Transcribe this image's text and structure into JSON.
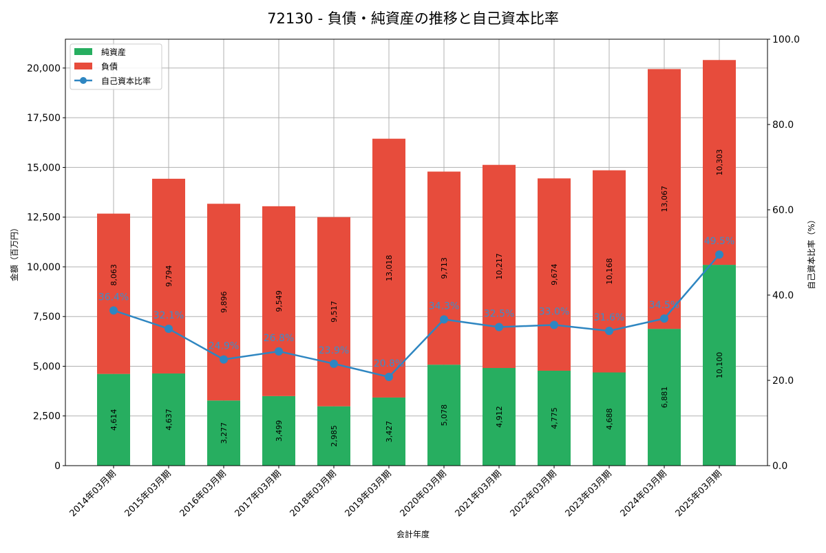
{
  "chart_data": {
    "type": "bar",
    "title": "72130 - 負債・純資産の推移と自己資本比率",
    "xlabel": "会計年度",
    "ylabel": "金額（百万円）",
    "y2label": "自己資本比率（%）",
    "ylim": [
      0,
      21450
    ],
    "y2lim": [
      0,
      100
    ],
    "yticks": [
      0,
      2500,
      5000,
      7500,
      10000,
      12500,
      15000,
      17500,
      20000
    ],
    "ytick_labels": [
      "0",
      "2,500",
      "5,000",
      "7,500",
      "10,000",
      "12,500",
      "15,000",
      "17,500",
      "20,000"
    ],
    "y2ticks": [
      0,
      20,
      40,
      60,
      80,
      100
    ],
    "y2tick_labels": [
      "0.0",
      "20.0",
      "40.0",
      "60.0",
      "80.0",
      "100.0"
    ],
    "grid": true,
    "legend_position": "top-left",
    "categories": [
      "2014年03月期",
      "2015年03月期",
      "2016年03月期",
      "2017年03月期",
      "2018年03月期",
      "2019年03月期",
      "2020年03月期",
      "2021年03月期",
      "2022年03月期",
      "2023年03月期",
      "2024年03月期",
      "2025年03月期"
    ],
    "series": [
      {
        "name": "純資産",
        "type": "bar",
        "color": "#27ae60",
        "values": [
          4614,
          4637,
          3277,
          3499,
          2985,
          3427,
          5078,
          4912,
          4775,
          4688,
          6881,
          10100
        ],
        "labels": [
          "4,614",
          "4,637",
          "3,277",
          "3,499",
          "2,985",
          "3,427",
          "5,078",
          "4,912",
          "4,775",
          "4,688",
          "6,881",
          "10,100"
        ]
      },
      {
        "name": "負債",
        "type": "bar",
        "color": "#e74c3c",
        "values": [
          8063,
          9794,
          9896,
          9549,
          9517,
          13018,
          9713,
          10217,
          9674,
          10168,
          13067,
          10303
        ],
        "labels": [
          "8,063",
          "9,794",
          "9,896",
          "9,549",
          "9,517",
          "13,018",
          "9,713",
          "10,217",
          "9,674",
          "10,168",
          "13,067",
          "10,303"
        ]
      },
      {
        "name": "自己資本比率",
        "type": "line",
        "axis": "right",
        "color": "#2e86c1",
        "values": [
          36.4,
          32.1,
          24.9,
          26.8,
          23.9,
          20.8,
          34.3,
          32.5,
          33.0,
          31.6,
          34.5,
          49.5
        ],
        "labels": [
          "36.4%",
          "32.1%",
          "24.9%",
          "26.8%",
          "23.9%",
          "20.8%",
          "34.3%",
          "32.5%",
          "33.0%",
          "31.6%",
          "34.5%",
          "49.5%"
        ]
      }
    ]
  }
}
